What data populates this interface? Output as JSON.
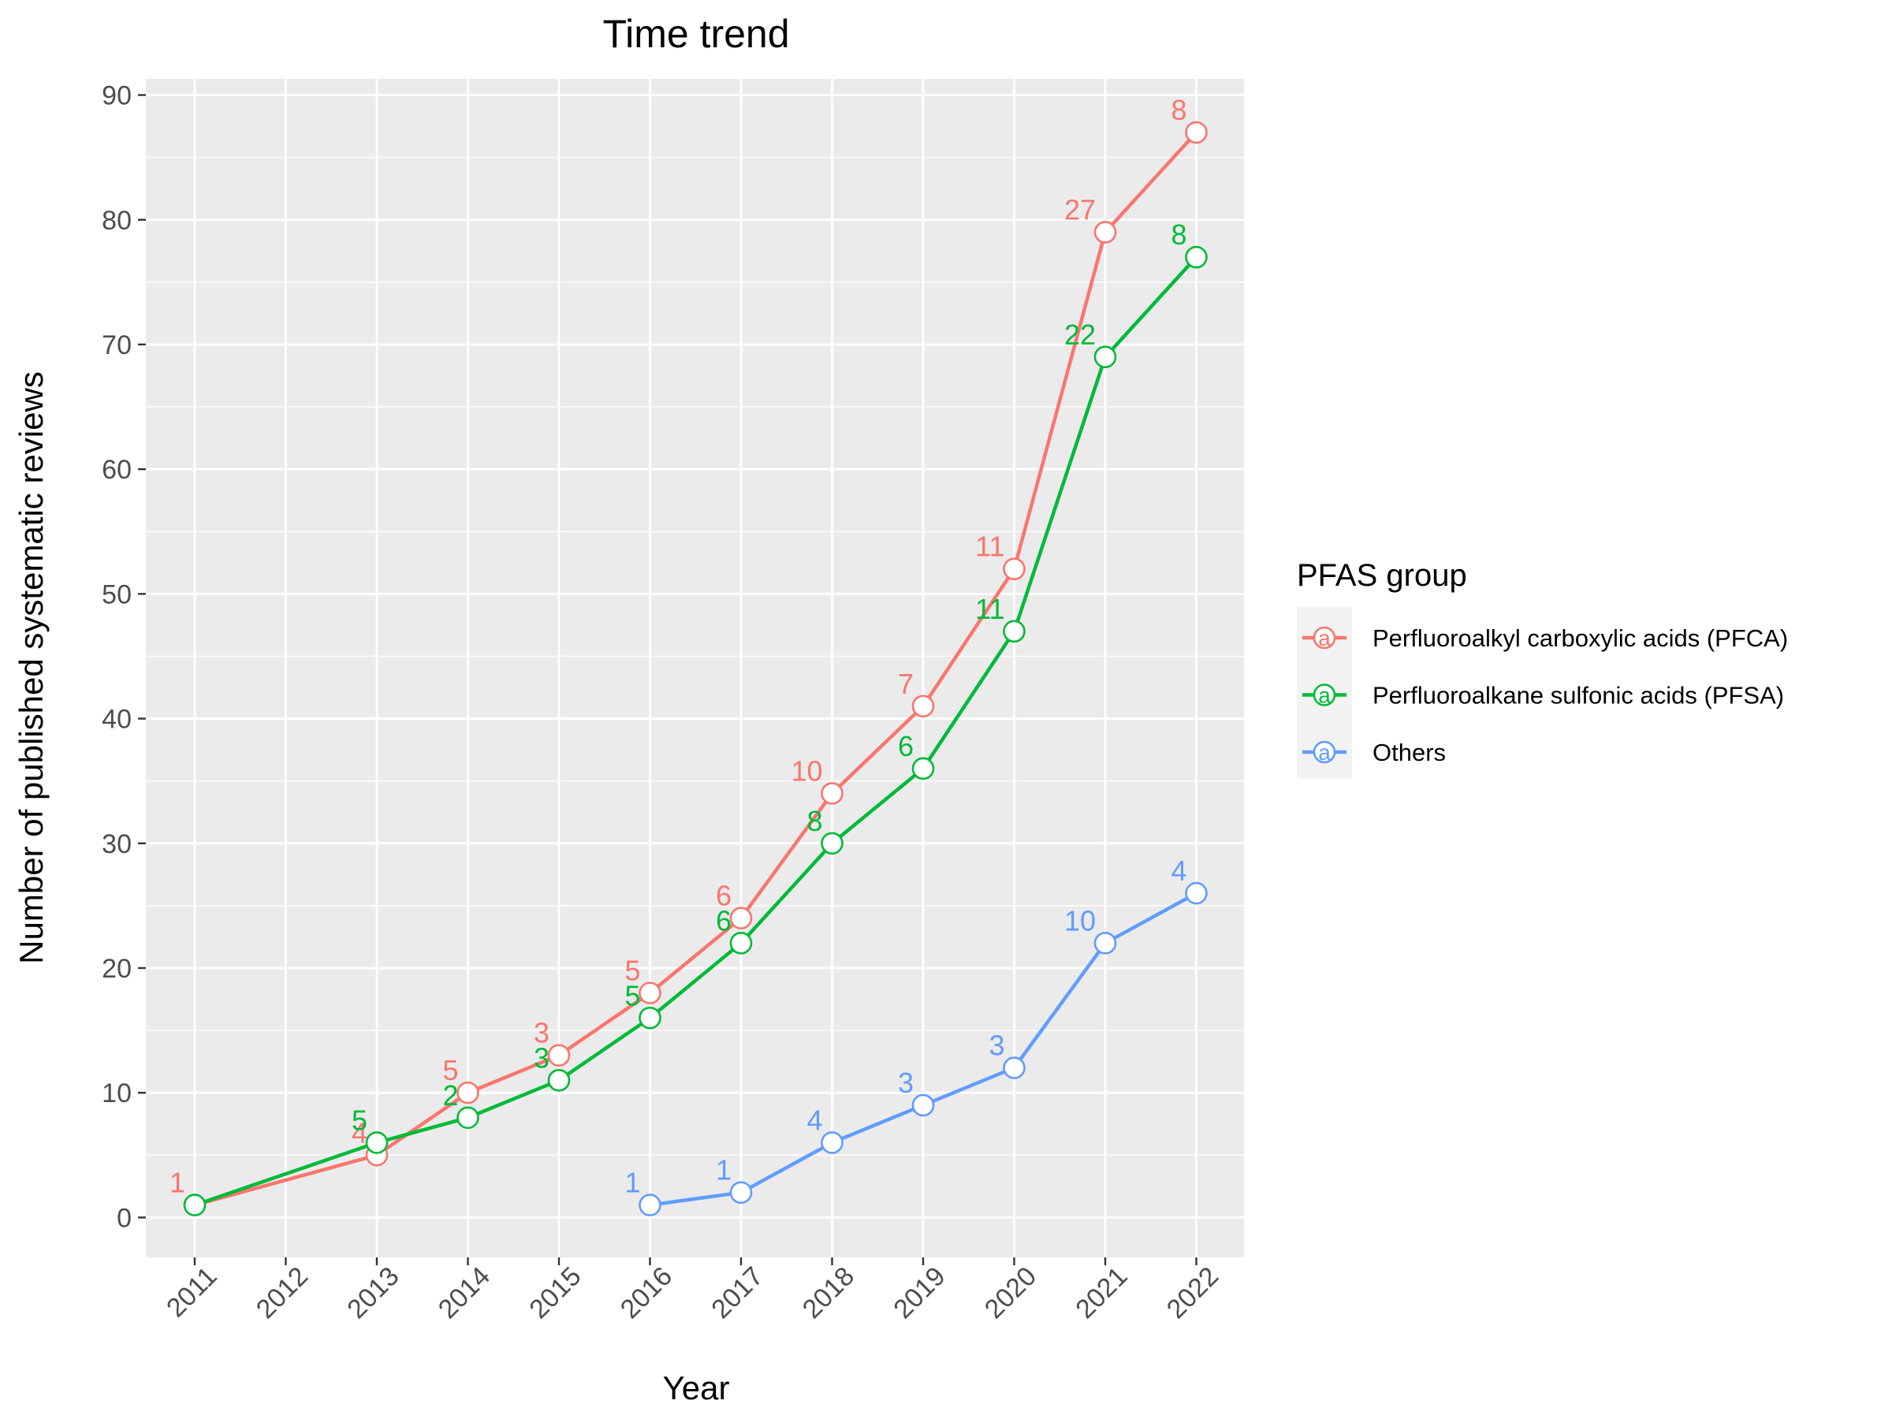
{
  "chart_data": {
    "type": "line",
    "title": "Time trend",
    "xlabel": "Year",
    "ylabel": "Number of published systematic reviews",
    "x": [
      "2011",
      "2012",
      "2013",
      "2014",
      "2015",
      "2016",
      "2017",
      "2018",
      "2019",
      "2020",
      "2021",
      "2022"
    ],
    "ylim": [
      -3.2,
      91.3
    ],
    "yticks": [
      0,
      10,
      20,
      30,
      40,
      50,
      60,
      70,
      80,
      90
    ],
    "grid": true,
    "legend": {
      "title": "PFAS group",
      "placement": "right",
      "glyph": "a"
    },
    "series": [
      {
        "name": "Perfluoroalkyl carboxylic acids (PFCA)",
        "color": "#F8766D",
        "points": [
          {
            "x": "2011",
            "y": 1,
            "label": "1"
          },
          {
            "x": "2013",
            "y": 5,
            "label": "4"
          },
          {
            "x": "2014",
            "y": 10,
            "label": "5"
          },
          {
            "x": "2015",
            "y": 13,
            "label": "3"
          },
          {
            "x": "2016",
            "y": 18,
            "label": "5"
          },
          {
            "x": "2017",
            "y": 24,
            "label": "6"
          },
          {
            "x": "2018",
            "y": 34,
            "label": "10"
          },
          {
            "x": "2019",
            "y": 41,
            "label": "7"
          },
          {
            "x": "2020",
            "y": 52,
            "label": "11"
          },
          {
            "x": "2021",
            "y": 79,
            "label": "27"
          },
          {
            "x": "2022",
            "y": 87,
            "label": "8"
          }
        ]
      },
      {
        "name": "Perfluoroalkane sulfonic acids (PFSA)",
        "color": "#00BA38",
        "points": [
          {
            "x": "2011",
            "y": 1,
            "label": ""
          },
          {
            "x": "2013",
            "y": 6,
            "label": "5"
          },
          {
            "x": "2014",
            "y": 8,
            "label": "2"
          },
          {
            "x": "2015",
            "y": 11,
            "label": "3"
          },
          {
            "x": "2016",
            "y": 16,
            "label": "5"
          },
          {
            "x": "2017",
            "y": 22,
            "label": "6"
          },
          {
            "x": "2018",
            "y": 30,
            "label": "8"
          },
          {
            "x": "2019",
            "y": 36,
            "label": "6"
          },
          {
            "x": "2020",
            "y": 47,
            "label": "11"
          },
          {
            "x": "2021",
            "y": 69,
            "label": "22"
          },
          {
            "x": "2022",
            "y": 77,
            "label": "8"
          }
        ]
      },
      {
        "name": "Others",
        "color": "#619CFF",
        "points": [
          {
            "x": "2016",
            "y": 1,
            "label": "1"
          },
          {
            "x": "2017",
            "y": 2,
            "label": "1"
          },
          {
            "x": "2018",
            "y": 6,
            "label": "4"
          },
          {
            "x": "2019",
            "y": 9,
            "label": "3"
          },
          {
            "x": "2020",
            "y": 12,
            "label": "3"
          },
          {
            "x": "2021",
            "y": 22,
            "label": "10"
          },
          {
            "x": "2022",
            "y": 26,
            "label": "4"
          }
        ]
      }
    ]
  }
}
